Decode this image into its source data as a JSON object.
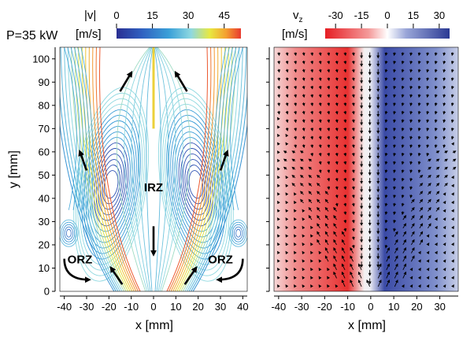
{
  "colors": {
    "velocity_scale": [
      "#2a2f92",
      "#3060c0",
      "#3aa0d8",
      "#8fd8e0",
      "#e8e840",
      "#f4a030",
      "#e83a30"
    ],
    "vz_scale": [
      "#e61e24",
      "#f49a9a",
      "#ffffff",
      "#9aa6d8",
      "#2b3a94"
    ],
    "arrow": "#000000"
  },
  "chart_data": [
    {
      "type": "streamline",
      "corner_label": "P=35 kW",
      "colorbar": {
        "label": "|v|",
        "unit": "[m/s]",
        "ticks": [
          "0",
          "15",
          "30",
          "45"
        ],
        "range": [
          0,
          52
        ]
      },
      "xlabel": "x [mm]",
      "ylabel": "y [mm]",
      "xlim": [
        -42,
        42
      ],
      "ylim": [
        0,
        105
      ],
      "xticks": [
        "-40",
        "-30",
        "-20",
        "-10",
        "0",
        "10",
        "20",
        "30",
        "40"
      ],
      "yticks": [
        "0",
        "10",
        "20",
        "30",
        "40",
        "50",
        "60",
        "70",
        "80",
        "90",
        "100"
      ],
      "annotations": [
        {
          "text": "IRZ",
          "x": 0,
          "y": 43
        },
        {
          "text": "ORZ",
          "x": -33,
          "y": 12
        },
        {
          "text": "ORZ",
          "x": 30,
          "y": 12
        }
      ],
      "flow_arrows": [
        {
          "from": [
            -15,
            86
          ],
          "to": [
            -10,
            94
          ]
        },
        {
          "from": [
            15,
            86
          ],
          "to": [
            10,
            94
          ]
        },
        {
          "from": [
            -30,
            52
          ],
          "to": [
            -33,
            60
          ]
        },
        {
          "from": [
            30,
            52
          ],
          "to": [
            33,
            60
          ]
        },
        {
          "from": [
            0,
            28
          ],
          "to": [
            0,
            16
          ]
        },
        {
          "from": [
            -14,
            3
          ],
          "to": [
            -19,
            10
          ]
        },
        {
          "from": [
            14,
            3
          ],
          "to": [
            19,
            10
          ]
        }
      ]
    },
    {
      "type": "vector_field",
      "colorbar": {
        "label": "v",
        "label_sub": "z",
        "unit": "[m/s]",
        "ticks": [
          "-30",
          "-15",
          "0",
          "15",
          "30"
        ],
        "range": [
          -36,
          36
        ]
      },
      "xlabel": "x [mm]",
      "xlim": [
        -42,
        38
      ],
      "ylim": [
        0,
        105
      ],
      "xticks": [
        "-40",
        "-30",
        "-20",
        "-10",
        "0",
        "10",
        "20",
        "30"
      ]
    }
  ]
}
